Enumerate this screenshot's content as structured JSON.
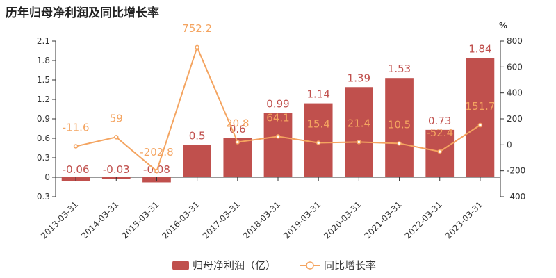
{
  "chart_data": {
    "type": "bar",
    "title": "历年归母净利润及同比增长率",
    "categories": [
      "2013-03-31",
      "2014-03-31",
      "2015-03-31",
      "2016-03-31",
      "2017-03-31",
      "2018-03-31",
      "2019-03-31",
      "2020-03-31",
      "2021-03-31",
      "2022-03-31",
      "2023-03-31"
    ],
    "series": [
      {
        "name": "归母净利润（亿）",
        "type": "bar",
        "axis": "left",
        "values": [
          -0.06,
          -0.03,
          -0.08,
          0.5,
          0.6,
          0.99,
          1.14,
          1.39,
          1.53,
          0.73,
          1.84
        ],
        "labels": [
          "-0.06",
          "-0.03",
          "-0.08",
          "0.5",
          "0.6",
          "0.99",
          "1.14",
          "1.39",
          "1.53",
          "0.73",
          "1.84"
        ]
      },
      {
        "name": "同比增长率",
        "type": "line",
        "axis": "right",
        "values": [
          -11.6,
          59,
          -202.8,
          752.2,
          20.8,
          64.1,
          15.4,
          21.4,
          10.5,
          -52.4,
          151.7
        ],
        "labels": [
          "-11.6",
          "59",
          "-202.8",
          "752.2",
          "20.8",
          "64.1",
          "15.4",
          "21.4",
          "10.5",
          "-52.4",
          "151.7"
        ]
      }
    ],
    "left_axis": {
      "ylim": [
        -0.3,
        2.1
      ],
      "ticks": [
        "-0.3",
        "0",
        "0.3",
        "0.6",
        "0.9",
        "1.2",
        "1.5",
        "1.8",
        "2.1"
      ]
    },
    "right_axis": {
      "unit": "%",
      "ylim": [
        -400,
        800
      ],
      "ticks": [
        "-400",
        "-200",
        "0",
        "200",
        "400",
        "600",
        "800"
      ]
    },
    "grid": false,
    "legend_position": "bottom-center"
  },
  "colors": {
    "bar": "#c0504d",
    "line": "#f4a460",
    "axis": "#333333"
  }
}
